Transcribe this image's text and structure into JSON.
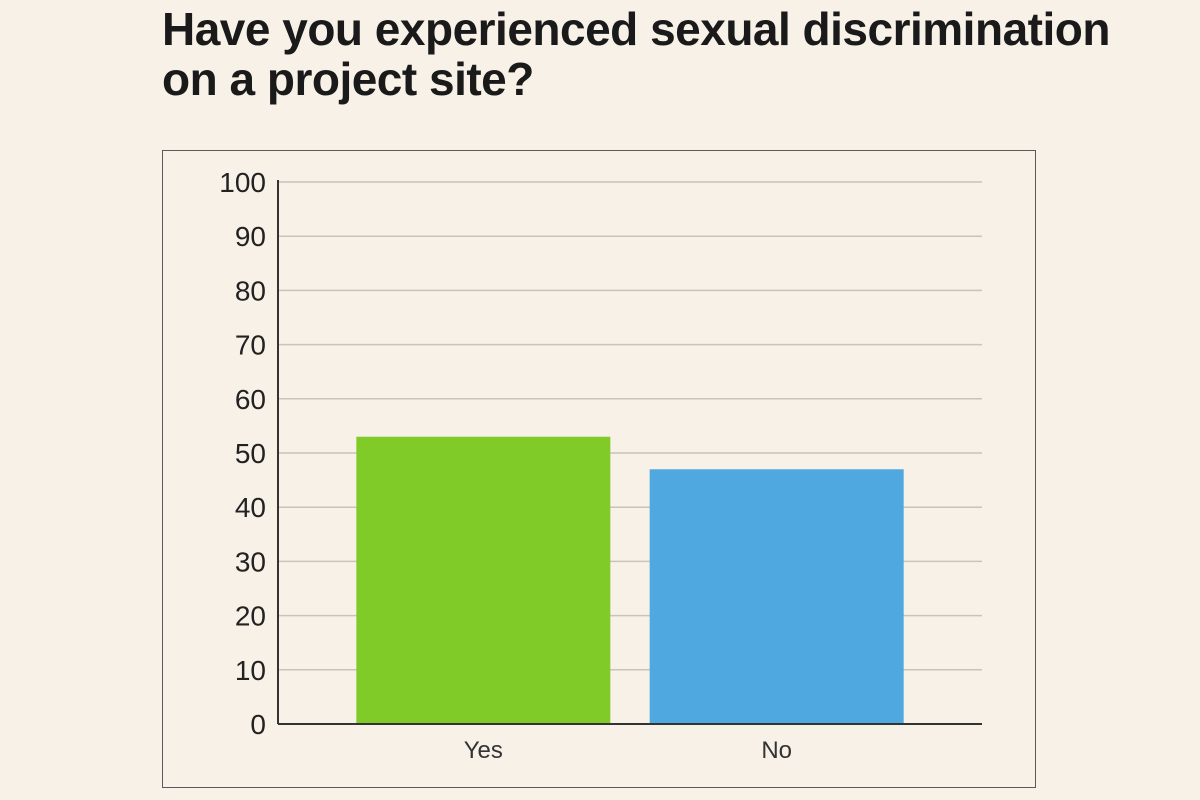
{
  "chart_data": {
    "type": "bar",
    "title": "Have you experienced sexual discrimination on a project site?",
    "categories": [
      "Yes",
      "No"
    ],
    "values": [
      53,
      47
    ],
    "colors": [
      "#80cb28",
      "#4fa8e0"
    ],
    "ylim": [
      0,
      100
    ],
    "yticks": [
      0,
      10,
      20,
      30,
      40,
      50,
      60,
      70,
      80,
      90,
      100
    ],
    "ytick_labels": [
      "0",
      "10",
      "20",
      "30",
      "40",
      "50",
      "60",
      "70",
      "80",
      "90",
      "100"
    ],
    "grid": true,
    "legend": "none"
  }
}
